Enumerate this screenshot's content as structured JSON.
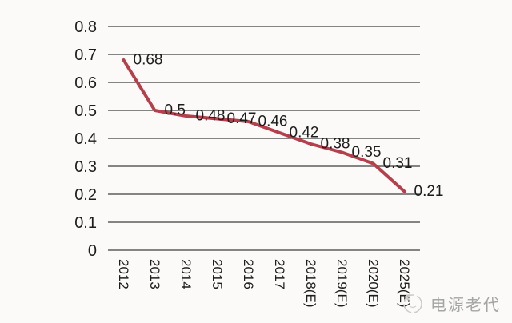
{
  "chart_data": {
    "type": "line",
    "title": "",
    "categories": [
      "2012",
      "2013",
      "2014",
      "2015",
      "2016",
      "2017",
      "2018(E)",
      "2019(E)",
      "2020(E)",
      "2025(E)"
    ],
    "values": [
      0.68,
      0.5,
      0.48,
      0.47,
      0.46,
      0.42,
      0.38,
      0.35,
      0.31,
      0.21
    ],
    "point_labels": [
      "0.68",
      "0.5",
      "0.48",
      "0.47",
      "0.46",
      "0.42",
      "0.38",
      "0.35",
      "0.31",
      "0.21"
    ],
    "ytick_values": [
      0,
      0.1,
      0.2,
      0.3,
      0.4,
      0.5,
      0.6,
      0.7,
      0.8
    ],
    "ytick_labels": [
      "0",
      "0.1",
      "0.2",
      "0.3",
      "0.4",
      "0.5",
      "0.6",
      "0.7",
      "0.8"
    ],
    "ylim": [
      0,
      0.8
    ],
    "xlabel": "",
    "ylabel": "",
    "grid": true,
    "legend": false,
    "x_labels_rotated_90_clockwise": true,
    "colors": {
      "line": "#b5404b",
      "grid": "#3f3f3f",
      "text": "#1d1d1d",
      "background": "#fbfaf8"
    }
  },
  "watermark": {
    "text": "电源老代",
    "logo_icon": "person-in-circle-logo",
    "color": "#a5a5a5"
  }
}
